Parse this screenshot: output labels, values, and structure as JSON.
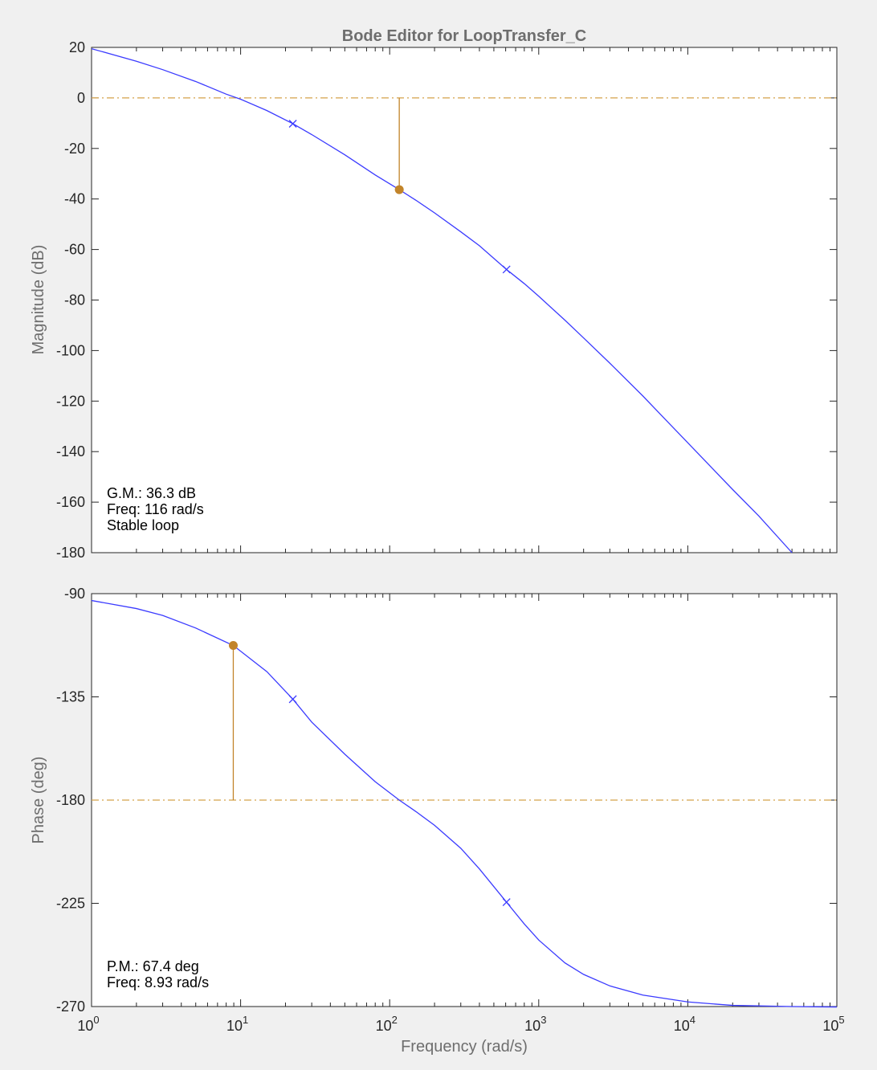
{
  "chart_data": [
    {
      "type": "line",
      "title": "Bode Editor for LoopTransfer_C",
      "ylabel": "Magnitude (dB)",
      "xscale": "log",
      "xlim": [
        1,
        100000
      ],
      "ylim": [
        -180,
        20
      ],
      "yticks": [
        "20",
        "0",
        "-20",
        "-40",
        "-60",
        "-80",
        "-100",
        "-120",
        "-140",
        "-160",
        "-180"
      ],
      "grid": false,
      "series": [
        {
          "color": "#3b3bff",
          "x": [
            1,
            2,
            3,
            5,
            8,
            10,
            15,
            22.4,
            30,
            50,
            80,
            116,
            150,
            200,
            300,
            400,
            608,
            800,
            1000,
            1500,
            2000,
            3000,
            5000,
            7000,
            10000,
            20000,
            30000,
            50000
          ],
          "y": [
            19.5,
            14.5,
            11.2,
            6.5,
            1.5,
            -0.5,
            -5,
            -10.2,
            -14.5,
            -22.5,
            -30.5,
            -36.3,
            -40.5,
            -45.5,
            -53,
            -58.5,
            -67.9,
            -73.5,
            -78.5,
            -88,
            -95,
            -105,
            -118,
            -127,
            -136.5,
            -155,
            -165.5,
            -180
          ]
        }
      ],
      "markers_x": {
        "symbol": "×",
        "x": [
          22.4,
          608
        ],
        "y": [
          -10.2,
          -67.9
        ]
      },
      "reference_line": {
        "y": 0,
        "style": "dash-dot",
        "color": "#d4a24a"
      },
      "margin_point": {
        "x": 116,
        "y": -36.3,
        "color": "#c2842a"
      },
      "annotation": [
        "G.M.: 36.3 dB",
        "Freq: 116 rad/s",
        "Stable loop"
      ]
    },
    {
      "type": "line",
      "ylabel": "Phase (deg)",
      "xlabel": "Frequency (rad/s)",
      "xscale": "log",
      "xlim": [
        1,
        100000
      ],
      "ylim": [
        -270,
        -90
      ],
      "yticks": [
        "-90",
        "-135",
        "-180",
        "-225",
        "-270"
      ],
      "xticks": [
        {
          "base": "10",
          "exp": "0"
        },
        {
          "base": "10",
          "exp": "1"
        },
        {
          "base": "10",
          "exp": "2"
        },
        {
          "base": "10",
          "exp": "3"
        },
        {
          "base": "10",
          "exp": "4"
        },
        {
          "base": "10",
          "exp": "5"
        }
      ],
      "grid": false,
      "series": [
        {
          "color": "#3b3bff",
          "x": [
            1,
            2,
            3,
            5,
            8.93,
            15,
            22.4,
            30,
            50,
            80,
            116,
            150,
            200,
            300,
            400,
            608,
            800,
            1000,
            1500,
            2000,
            3000,
            5000,
            10000,
            20000,
            50000,
            100000
          ],
          "y": [
            -93,
            -96.5,
            -99.5,
            -105,
            -112.6,
            -124,
            -136,
            -146,
            -160,
            -172,
            -180,
            -185,
            -191,
            -201,
            -210,
            -224.5,
            -234,
            -241,
            -251,
            -256,
            -261,
            -265,
            -268,
            -269.5,
            -270,
            -270.2
          ]
        }
      ],
      "markers_x": {
        "symbol": "×",
        "x": [
          22.4,
          608
        ],
        "y": [
          -136,
          -224.5
        ]
      },
      "reference_line": {
        "y": -180,
        "style": "dash-dot",
        "color": "#d4a24a"
      },
      "margin_point": {
        "x": 8.93,
        "y": -112.6,
        "color": "#c2842a"
      },
      "annotation": [
        "P.M.: 67.4 deg",
        "Freq: 8.93 rad/s"
      ]
    }
  ]
}
